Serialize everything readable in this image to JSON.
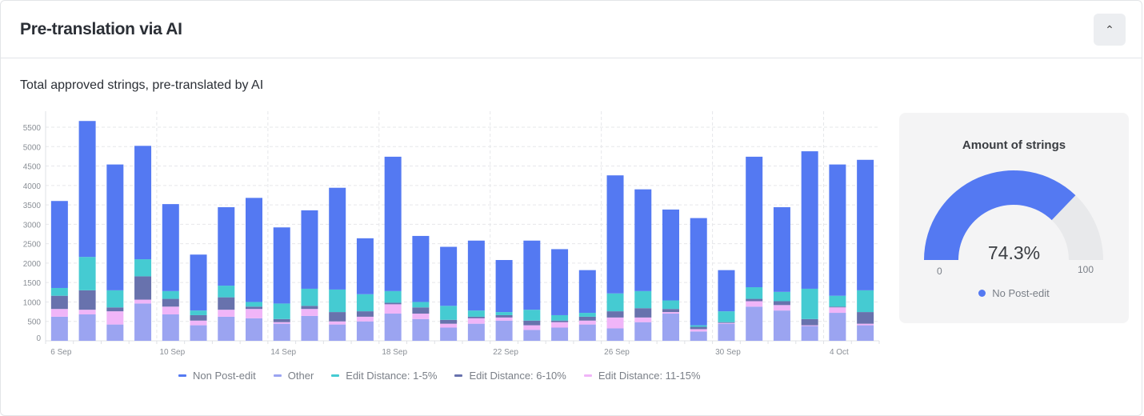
{
  "header": {
    "title": "Pre-translation via AI",
    "collapse_icon": "chevron-up-icon"
  },
  "subtitle": "Total approved strings, pre-translated by AI",
  "colors": {
    "Non Post-edit": "#5479f2",
    "Other": "#9ba4f1",
    "Edit Distance: 1-5%": "#45cbd2",
    "Edit Distance: 6-10%": "#6872ad",
    "Edit Distance: 11-15%": "#f0b5f8",
    "gauge_track": "#e8e9eb"
  },
  "chart_data": [
    {
      "type": "bar",
      "stacked": true,
      "grid": true,
      "legend_position": "bottom",
      "ylim": [
        0,
        5500
      ],
      "yticks": [
        0,
        500,
        1000,
        1500,
        2000,
        2500,
        3000,
        3500,
        4000,
        4500,
        5000,
        5500
      ],
      "xtick_labels": [
        "6 Sep",
        "10 Sep",
        "14 Sep",
        "18 Sep",
        "22 Sep",
        "26 Sep",
        "30 Sep",
        "4 Oct"
      ],
      "categories": [
        "6 Sep",
        "7 Sep",
        "8 Sep",
        "9 Sep",
        "10 Sep",
        "11 Sep",
        "12 Sep",
        "13 Sep",
        "14 Sep",
        "15 Sep",
        "16 Sep",
        "17 Sep",
        "18 Sep",
        "19 Sep",
        "20 Sep",
        "21 Sep",
        "22 Sep",
        "23 Sep",
        "24 Sep",
        "25 Sep",
        "26 Sep",
        "27 Sep",
        "28 Sep",
        "29 Sep",
        "30 Sep",
        "1 Oct",
        "2 Oct",
        "3 Oct",
        "4 Oct",
        "5 Oct"
      ],
      "series": [
        {
          "name": "Other",
          "values": [
            620,
            680,
            420,
            960,
            680,
            400,
            620,
            580,
            440,
            640,
            420,
            500,
            700,
            560,
            340,
            440,
            520,
            280,
            340,
            420,
            320,
            480,
            700,
            240,
            440,
            880,
            780,
            380,
            720,
            400
          ]
        },
        {
          "name": "Edit Distance: 11-15%",
          "values": [
            200,
            120,
            340,
            100,
            200,
            120,
            180,
            240,
            40,
            180,
            80,
            120,
            240,
            140,
            100,
            140,
            80,
            120,
            140,
            100,
            280,
            120,
            40,
            60,
            20,
            140,
            140,
            20,
            140,
            40
          ]
        },
        {
          "name": "Edit Distance: 6-10%",
          "values": [
            340,
            500,
            100,
            600,
            200,
            140,
            320,
            60,
            80,
            80,
            240,
            140,
            40,
            160,
            100,
            40,
            60,
            120,
            40,
            100,
            160,
            240,
            80,
            60,
            20,
            60,
            100,
            160,
            20,
            300
          ]
        },
        {
          "name": "Edit Distance: 1-5%",
          "values": [
            200,
            860,
            440,
            440,
            200,
            120,
            300,
            120,
            400,
            440,
            580,
            440,
            300,
            140,
            360,
            160,
            80,
            280,
            140,
            100,
            460,
            440,
            220,
            40,
            280,
            300,
            240,
            780,
            280,
            560
          ]
        },
        {
          "name": "Non Post-edit",
          "values": [
            2240,
            3500,
            3240,
            2920,
            2240,
            1440,
            2020,
            2680,
            1960,
            2020,
            2620,
            1440,
            3460,
            1700,
            1520,
            1800,
            1340,
            1780,
            1700,
            1100,
            3040,
            2620,
            2340,
            2760,
            1060,
            3360,
            2180,
            3540,
            3380,
            3360
          ]
        }
      ],
      "legend": [
        "Non Post-edit",
        "Other",
        "Edit Distance: 1-5%",
        "Edit Distance: 6-10%",
        "Edit Distance: 11-15%"
      ]
    },
    {
      "type": "gauge",
      "title": "Amount of strings",
      "value": 74.3,
      "value_label": "74.3%",
      "min": 0,
      "max": 100,
      "min_label": "0",
      "max_label": "100",
      "legend": "No Post-edit"
    }
  ]
}
